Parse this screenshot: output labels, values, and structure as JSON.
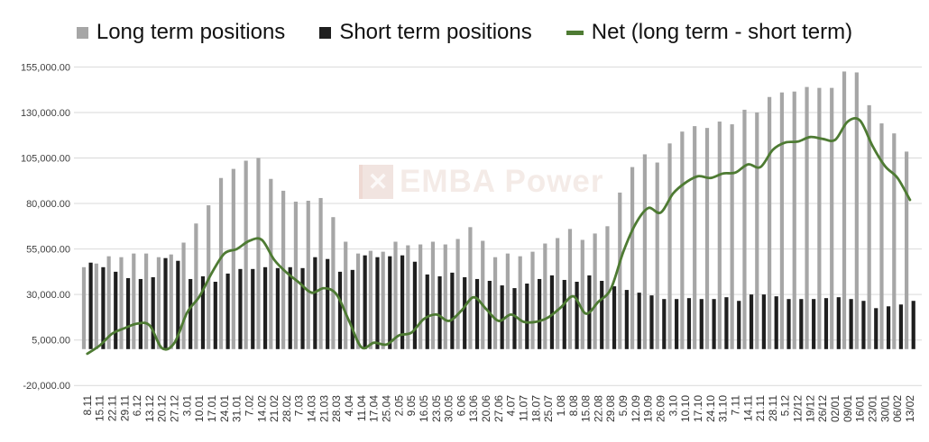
{
  "legend": {
    "items": [
      {
        "swatch": "square"
      },
      {
        "swatch": "square"
      },
      {
        "swatch": "dash"
      }
    ]
  },
  "watermark": {
    "logo": "x-square-icon",
    "text": "EMBA Power"
  },
  "chart_data": {
    "type": "combo",
    "title": "",
    "xlabel": "",
    "ylabel": "",
    "grid": true,
    "legend_position": "top",
    "y_axis": {
      "min": -20000,
      "max": 155000,
      "step": 25000,
      "tick_labels": [
        "155,000.00",
        "130,000.00",
        "105,000.00",
        "80,000.00",
        "55,000.00",
        "30,000.00",
        "5,000.00",
        "-20,000.00"
      ]
    },
    "categories": [
      "8.11",
      "15.11",
      "22.11",
      "29.11",
      "6.12",
      "13.12",
      "20.12",
      "27.12",
      "3.01",
      "10.01",
      "17.01",
      "24.01",
      "31.01",
      "7.02",
      "14.02",
      "21.02",
      "28.02",
      "7.03",
      "14.03",
      "21.03",
      "28.03",
      "4.04",
      "11.04",
      "17.04",
      "25.04",
      "2.05",
      "9.05",
      "16.05",
      "23.05",
      "30.05",
      "6.06",
      "13.06",
      "20.06",
      "27.06",
      "4.07",
      "11.07",
      "18.07",
      "25.07",
      "1.08",
      "8.08",
      "15.08",
      "22.08",
      "29.08",
      "5.09",
      "12.09",
      "19.09",
      "26.09",
      "3.10",
      "10.10",
      "17.10",
      "24.10",
      "31.10",
      "7.11",
      "14.11",
      "21.11",
      "28.11",
      "5.12",
      "12/12",
      "19/12",
      "26/12",
      "02/01",
      "09/01",
      "16/01",
      "23/01",
      "30/01",
      "06/02",
      "13/02"
    ],
    "series": [
      {
        "name": "Long term positions",
        "type": "bar",
        "color": "#a6a6a6",
        "values": [
          45000,
          47000,
          51000,
          50500,
          52500,
          52500,
          50500,
          52000,
          58500,
          69000,
          79000,
          94000,
          99000,
          103500,
          105000,
          93500,
          87000,
          81000,
          81500,
          83000,
          72500,
          59000,
          52500,
          54000,
          53500,
          59000,
          57000,
          57500,
          59000,
          57500,
          60500,
          67000,
          59500,
          50500,
          52500,
          51000,
          53500,
          58000,
          61000,
          66000,
          60000,
          63500,
          67500,
          86000,
          100000,
          107000,
          102500,
          113000,
          119500,
          122500,
          121500,
          125000,
          123500,
          131500,
          130000,
          138500,
          141000,
          141500,
          144000,
          143500,
          143500,
          152500,
          152000,
          134000,
          124000,
          118500,
          108500
        ]
      },
      {
        "name": "Short term positions",
        "type": "bar",
        "color": "#1f1f1f",
        "values": [
          47500,
          45000,
          42500,
          39000,
          38500,
          39500,
          50000,
          48500,
          38500,
          40000,
          37000,
          41500,
          44000,
          44000,
          45000,
          44500,
          45000,
          44500,
          50500,
          49500,
          42500,
          43500,
          51500,
          50500,
          51000,
          51500,
          48000,
          41000,
          40000,
          42000,
          39500,
          38500,
          37500,
          35000,
          33500,
          36000,
          38500,
          40500,
          38000,
          37000,
          40500,
          37500,
          34500,
          32500,
          31000,
          29500,
          27500,
          27500,
          28000,
          27500,
          27500,
          28500,
          26500,
          30000,
          30000,
          29000,
          27500,
          27500,
          27500,
          28000,
          28500,
          27500,
          26500,
          22500,
          23500,
          24500,
          26500
        ]
      },
      {
        "name": "Net (long term - short term)",
        "type": "line",
        "color": "#4e7b33",
        "values": [
          -2500,
          2000,
          8500,
          11500,
          14000,
          13000,
          500,
          3500,
          20000,
          29000,
          42000,
          52500,
          55000,
          59500,
          60000,
          49000,
          42000,
          36500,
          31000,
          33500,
          30000,
          15500,
          1000,
          3500,
          2500,
          7500,
          9000,
          16500,
          19000,
          15500,
          21000,
          28500,
          22000,
          15500,
          19000,
          15000,
          15000,
          17500,
          23000,
          29000,
          19500,
          26000,
          33000,
          53500,
          69000,
          77500,
          75000,
          85500,
          91500,
          95000,
          94000,
          96500,
          97000,
          101500,
          100000,
          109500,
          113500,
          114000,
          116500,
          115500,
          115000,
          125000,
          125500,
          111500,
          100500,
          94000,
          82000
        ]
      }
    ]
  }
}
